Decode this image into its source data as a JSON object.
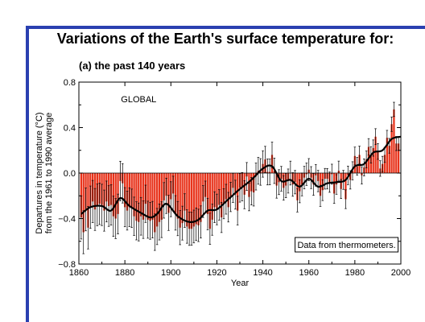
{
  "title": "Variations of the Earth's surface temperature for:",
  "colors": {
    "frame": "#2a40b0",
    "bar": "#e8341c",
    "line": "#000000"
  },
  "chart_data": {
    "type": "bar",
    "subtitle": "(a) the past 140 years",
    "region_label": "GLOBAL",
    "annotation": "Data from thermometers.",
    "xlabel": "Year",
    "ylabel": [
      "Departures in temperature (°C)",
      "from the 1961 to 1990 average"
    ],
    "xlim": [
      1860,
      2000
    ],
    "ylim": [
      -0.8,
      0.8
    ],
    "x_ticks": [
      1860,
      1880,
      1900,
      1920,
      1940,
      1960,
      1980,
      2000
    ],
    "y_ticks": [
      -0.8,
      -0.4,
      0.0,
      0.4,
      0.8
    ],
    "y_tick_labels": [
      "−0.8",
      "−0.4",
      "0.0",
      "0.4",
      "0.8"
    ],
    "years_start": 1861,
    "anomalies": [
      -0.39,
      -0.52,
      -0.32,
      -0.48,
      -0.3,
      -0.25,
      -0.32,
      -0.28,
      -0.27,
      -0.28,
      -0.33,
      -0.25,
      -0.29,
      -0.28,
      -0.38,
      -0.4,
      -0.36,
      -0.07,
      -0.09,
      -0.3,
      -0.33,
      -0.3,
      -0.31,
      -0.38,
      -0.42,
      -0.43,
      -0.38,
      -0.41,
      -0.27,
      -0.41,
      -0.42,
      -0.41,
      -0.52,
      -0.47,
      -0.43,
      -0.41,
      -0.24,
      -0.2,
      -0.35,
      -0.23,
      -0.18,
      -0.35,
      -0.4,
      -0.48,
      -0.44,
      -0.33,
      -0.47,
      -0.49,
      -0.49,
      -0.47,
      -0.45,
      -0.46,
      -0.43,
      -0.25,
      -0.21,
      -0.36,
      -0.49,
      -0.41,
      -0.3,
      -0.32,
      -0.28,
      -0.39,
      -0.27,
      -0.23,
      -0.3,
      -0.21,
      -0.13,
      -0.19,
      -0.33,
      -0.13,
      -0.12,
      -0.19,
      -0.03,
      -0.21,
      -0.16,
      -0.17,
      -0.03,
      0.02,
      0.01,
      0.08,
      0.12,
      0.01,
      0.01,
      0.16,
      0.02,
      -0.11,
      -0.08,
      -0.05,
      -0.13,
      -0.11,
      -0.07,
      0.0,
      -0.1,
      -0.08,
      -0.24,
      -0.16,
      -0.1,
      -0.04,
      -0.01,
      0.03,
      -0.04,
      -0.1,
      -0.02,
      -0.07,
      -0.2,
      -0.15,
      -0.05,
      -0.05,
      -0.08,
      -0.01,
      -0.18,
      -0.1,
      0.02,
      -0.14,
      -0.06,
      -0.23,
      -0.02,
      -0.06,
      0.02,
      0.15,
      0.06,
      0.16,
      -0.02,
      0.05,
      0.12,
      0.23,
      0.16,
      0.22,
      0.32,
      0.19,
      0.04,
      0.08,
      0.16,
      0.31,
      0.24,
      0.43,
      0.56,
      0.26,
      0.26
    ],
    "smoothed": [
      [
        1861,
        -0.36
      ],
      [
        1865,
        -0.3
      ],
      [
        1870,
        -0.29
      ],
      [
        1874,
        -0.33
      ],
      [
        1878,
        -0.22
      ],
      [
        1882,
        -0.29
      ],
      [
        1887,
        -0.35
      ],
      [
        1891,
        -0.39
      ],
      [
        1894,
        -0.36
      ],
      [
        1898,
        -0.27
      ],
      [
        1903,
        -0.38
      ],
      [
        1908,
        -0.43
      ],
      [
        1912,
        -0.41
      ],
      [
        1916,
        -0.33
      ],
      [
        1920,
        -0.32
      ],
      [
        1925,
        -0.23
      ],
      [
        1930,
        -0.14
      ],
      [
        1935,
        -0.06
      ],
      [
        1940,
        0.04
      ],
      [
        1944,
        0.06
      ],
      [
        1948,
        -0.07
      ],
      [
        1952,
        -0.06
      ],
      [
        1956,
        -0.12
      ],
      [
        1960,
        -0.05
      ],
      [
        1964,
        -0.12
      ],
      [
        1968,
        -0.09
      ],
      [
        1972,
        -0.08
      ],
      [
        1976,
        -0.06
      ],
      [
        1980,
        0.06
      ],
      [
        1984,
        0.08
      ],
      [
        1988,
        0.18
      ],
      [
        1992,
        0.2
      ],
      [
        1996,
        0.3
      ],
      [
        2000,
        0.32
      ]
    ]
  }
}
